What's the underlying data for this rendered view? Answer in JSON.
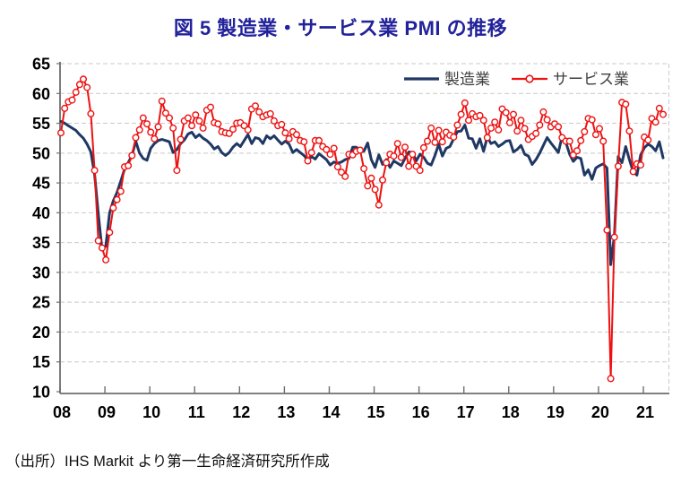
{
  "title": "図 5  製造業・サービス業 PMI の推移",
  "source": "（出所）IHS Markit より第一生命経済研究所作成",
  "legend": {
    "manufacturing": "製造業",
    "services": "サービス業"
  },
  "colors": {
    "title": "#22229b",
    "manufacturing_line": "#1f3864",
    "services_line": "#ee1111",
    "marker_fill": "#ffffff",
    "gridline": "#c9c9c9",
    "axis": "#6e6e6e",
    "tick_label": "#000000",
    "legend_text": "#404040"
  },
  "chart_data": {
    "type": "line",
    "title": "図 5  製造業・サービス業 PMI の推移",
    "x_start": "2008-01",
    "frequency": "monthly",
    "x_tick_labels": [
      "08",
      "09",
      "10",
      "11",
      "12",
      "13",
      "14",
      "15",
      "16",
      "17",
      "18",
      "19",
      "20",
      "21"
    ],
    "y_ticks": [
      10,
      15,
      20,
      25,
      30,
      35,
      40,
      45,
      50,
      55,
      60,
      65
    ],
    "ylim": [
      10,
      65
    ],
    "grid": "horizontal-dashed",
    "legend_position": "top-right-inside",
    "series": [
      {
        "name": "製造業",
        "style": "solid-thick-line",
        "values": [
          55.3,
          55.0,
          54.6,
          54.2,
          53.8,
          53.1,
          52.5,
          51.5,
          50.2,
          46.4,
          39.8,
          33.8,
          34.4,
          40.0,
          42.0,
          43.4,
          45.3,
          47.3,
          48.4,
          49.6,
          52.0,
          50.0,
          49.1,
          48.8,
          50.8,
          51.6,
          52.1,
          52.3,
          52.1,
          51.9,
          50.1,
          50.6,
          51.6,
          52.2,
          53.2,
          53.5,
          52.6,
          53.1,
          52.5,
          52.1,
          51.5,
          50.7,
          51.1,
          50.1,
          49.6,
          50.1,
          51.0,
          51.6,
          51.1,
          52.1,
          53.1,
          51.6,
          52.6,
          52.4,
          51.6,
          52.9,
          52.4,
          52.9,
          52.2,
          51.5,
          52.0,
          51.5,
          50.1,
          50.6,
          50.1,
          49.6,
          48.8,
          49.4,
          49.0,
          49.9,
          49.4,
          48.9,
          48.0,
          48.5,
          48.3,
          48.5,
          48.9,
          49.1,
          51.0,
          51.0,
          50.4,
          50.3,
          51.7,
          48.9,
          47.6,
          49.7,
          48.1,
          48.9,
          47.6,
          48.7,
          48.3,
          47.9,
          49.1,
          50.2,
          50.1,
          48.7,
          49.8,
          49.3,
          48.3,
          48.0,
          49.6,
          51.5,
          49.5,
          50.8,
          51.1,
          52.4,
          53.6,
          53.7,
          54.7,
          52.5,
          52.4,
          50.8,
          52.4,
          50.3,
          52.7,
          51.6,
          51.9,
          51.1,
          51.5,
          52.0,
          52.1,
          50.2,
          50.6,
          51.3,
          49.8,
          49.5,
          48.1,
          48.9,
          50.0,
          51.3,
          52.6,
          51.7,
          50.9,
          50.1,
          52.8,
          51.8,
          49.8,
          48.6,
          49.3,
          49.1,
          46.3,
          47.2,
          45.6,
          47.5,
          47.9,
          48.2,
          47.5,
          31.3,
          36.2,
          49.4,
          48.4,
          51.1,
          48.9,
          46.9,
          46.3,
          49.7,
          50.9,
          51.5,
          51.1,
          50.4,
          51.9,
          49.2
        ]
      },
      {
        "name": "サービス業",
        "style": "line-with-open-circle-markers",
        "values": [
          53.4,
          57.5,
          58.6,
          58.9,
          60.2,
          61.5,
          62.4,
          61.0,
          56.6,
          47.1,
          35.3,
          34.1,
          32.1,
          36.7,
          40.8,
          42.2,
          43.6,
          47.7,
          47.9,
          49.6,
          52.6,
          53.9,
          55.9,
          54.9,
          53.5,
          52.4,
          54.4,
          58.7,
          56.7,
          55.9,
          54.2,
          47.1,
          52.3,
          55.4,
          55.9,
          54.6,
          56.4,
          55.4,
          54.2,
          57.2,
          57.7,
          55.1,
          54.9,
          53.6,
          53.4,
          53.3,
          54.0,
          55.0,
          55.1,
          54.6,
          53.9,
          57.4,
          57.9,
          56.9,
          56.1,
          56.4,
          56.6,
          55.4,
          54.6,
          54.8,
          53.4,
          52.4,
          53.6,
          53.1,
          52.1,
          51.9,
          48.7,
          50.1,
          52.1,
          52.1,
          51.1,
          50.6,
          49.8,
          50.8,
          47.7,
          46.8,
          46.1,
          49.8,
          49.7,
          50.3,
          50.5,
          47.4,
          44.5,
          45.8,
          43.9,
          41.3,
          45.5,
          48.4,
          49.8,
          49.5,
          51.6,
          49.3,
          51.0,
          47.8,
          49.8,
          47.8,
          47.1,
          50.9,
          52.0,
          54.2,
          51.8,
          53.8,
          51.9,
          53.5,
          53.0,
          52.7,
          54.7,
          56.5,
          58.4,
          55.5,
          56.6,
          56.1,
          56.3,
          55.5,
          52.6,
          54.2,
          55.2,
          53.9,
          57.4,
          56.8,
          55.1,
          56.5,
          53.7,
          55.5,
          54.1,
          52.3,
          52.8,
          53.3,
          54.7,
          56.9,
          55.6,
          54.4,
          54.9,
          54.4,
          52.6,
          52.0,
          52.0,
          49.7,
          50.4,
          52.1,
          53.6,
          55.8,
          55.6,
          53.1,
          54.1,
          52.0,
          37.1,
          12.2,
          35.9,
          47.8,
          58.5,
          58.2,
          53.7,
          46.9,
          48.2,
          48.0,
          52.7,
          52.2,
          55.8,
          55.2,
          57.5,
          56.5
        ]
      }
    ]
  }
}
